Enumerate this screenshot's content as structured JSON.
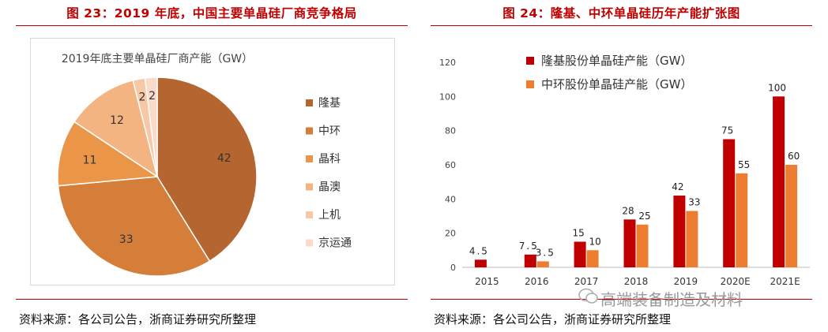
{
  "left": {
    "figure_title": "图 23：2019 年底，中国主要单晶硅厂商竞争格局",
    "source": "资料来源：各公司公告，浙商证券研究所整理"
  },
  "right": {
    "figure_title": "图 24：隆基、中环单晶硅历年产能扩张图",
    "source": "资料来源：各公司公告，浙商证券研究所整理"
  },
  "watermark": "高端装备制造及材料",
  "chart_data": [
    {
      "type": "pie",
      "title": "2019年底主要单晶硅厂商产能（GW）",
      "legend_position": "right",
      "categories": [
        "隆基",
        "中环",
        "晶科",
        "晶澳",
        "上机",
        "京运通"
      ],
      "values": [
        42,
        33,
        11,
        12,
        2,
        2
      ],
      "colors": [
        "#b5652f",
        "#d57e3a",
        "#eb9548",
        "#f4b482",
        "#f7c8a6",
        "#fadac9"
      ]
    },
    {
      "type": "bar",
      "title": "",
      "categories": [
        "2015",
        "2016",
        "2017",
        "2018",
        "2019",
        "2020E",
        "2021E"
      ],
      "series": [
        {
          "name": "隆基股份单晶硅产能（GW）",
          "values": [
            4.5,
            7.5,
            15,
            28,
            42,
            75,
            100
          ],
          "labels": [
            "4.5",
            "7.5",
            "15",
            "28",
            "42",
            "75",
            "100"
          ],
          "color": "#c00000"
        },
        {
          "name": "中环股份单晶硅产能（GW）",
          "values": [
            null,
            3.5,
            10,
            25,
            33,
            55,
            60
          ],
          "labels": [
            "",
            "3.5",
            "10",
            "25",
            "33",
            "55",
            "60"
          ],
          "color": "#ed7d31"
        }
      ],
      "ylim": [
        0,
        120
      ],
      "yticks": [
        0,
        20,
        40,
        60,
        80,
        100,
        120
      ],
      "legend_position": "top"
    }
  ]
}
